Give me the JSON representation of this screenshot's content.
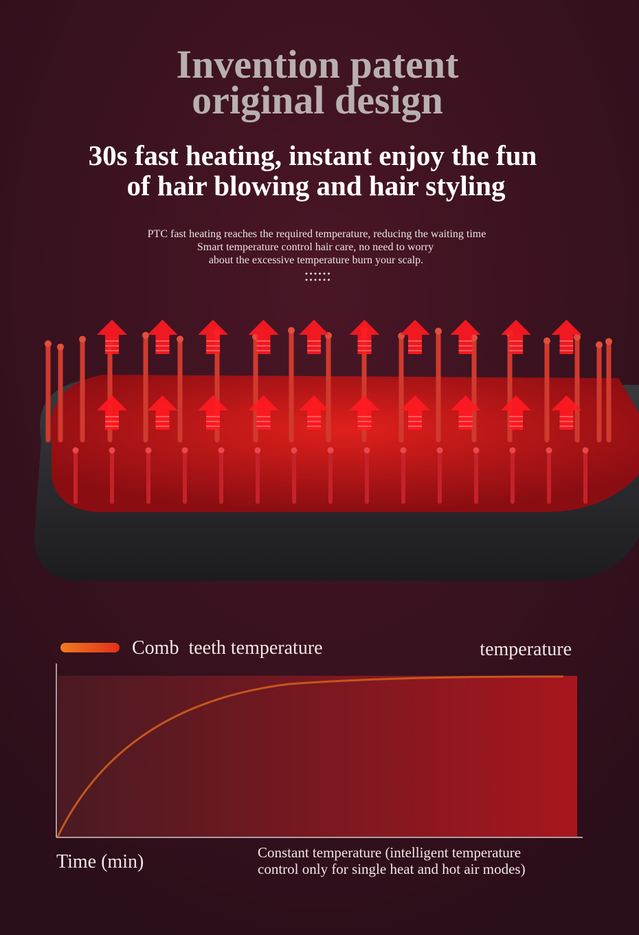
{
  "header": {
    "title_lines": [
      "Invention patent",
      "original design"
    ],
    "subtitle_lines": [
      "30s fast heating, instant enjoy the fun",
      "of hair blowing and hair styling"
    ],
    "description_lines": [
      "PTC fast heating reaches the required temperature, reducing the waiting time",
      "Smart temperature control hair care, no need to worry",
      "about the excessive temperature burn your scalp."
    ]
  },
  "graph": {
    "legend": "Comb  teeth temperature",
    "y_label": "temperature",
    "x_label": "Time (min)",
    "note_lines": [
      "Constant temperature (intelligent temperature",
      "control only for single heat and hot air modes)"
    ]
  }
}
